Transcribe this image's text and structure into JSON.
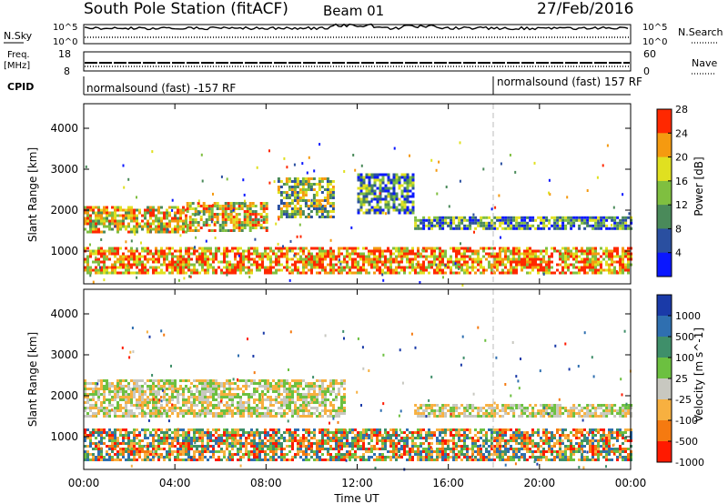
{
  "header": {
    "title": "South Pole Station (fitACF)",
    "beam": "Beam 01",
    "date": "27/Feb/2016"
  },
  "top_panels": {
    "nsky": {
      "label": "N.Sky",
      "ticks": [
        "10^5",
        "10^0"
      ]
    },
    "nsearch": {
      "label": "N.Search",
      "ticks": [
        "10^5",
        "10^0"
      ]
    },
    "freq": {
      "label_line1": "Freq.",
      "label_line2": "[MHz]",
      "ticks": [
        "18",
        "8"
      ]
    },
    "nave": {
      "label": "Nave",
      "ticks": [
        "60",
        "0"
      ]
    },
    "cpid": {
      "label": "CPID",
      "segments": [
        {
          "text": "normalsound (fast) -157 RF",
          "start": "00:00",
          "end": "18:00"
        },
        {
          "text": "normalsound (fast) 157 RF",
          "start": "18:00",
          "end": "24:00"
        }
      ]
    }
  },
  "chart_data": [
    {
      "type": "heatmap",
      "name": "power",
      "ylabel": "Slant Range [km]",
      "xlabel": "",
      "x_ticks": [
        "00:00",
        "04:00",
        "08:00",
        "12:00",
        "16:00",
        "20:00",
        "00:00"
      ],
      "y_ticks": [
        1000,
        2000,
        3000,
        4000
      ],
      "ylim": [
        200,
        4600
      ],
      "colorbar": {
        "label": "Power [dB]",
        "ticks": [
          "4",
          "8",
          "12",
          "16",
          "20",
          "24",
          "28"
        ],
        "colors": [
          "#0a17ff",
          "#2a4fa0",
          "#4a8a5a",
          "#7fbf40",
          "#e0e020",
          "#f59a10",
          "#ff2800"
        ]
      },
      "echo_bands": [
        {
          "t_start": 0.0,
          "t_end": 4.5,
          "r_low": 1450,
          "r_high": 2100,
          "level": 20
        },
        {
          "t_start": 4.5,
          "t_end": 8.0,
          "r_low": 1500,
          "r_high": 2200,
          "level": 18
        },
        {
          "t_start": 8.5,
          "t_end": 11.0,
          "r_low": 1800,
          "r_high": 2800,
          "level": 16
        },
        {
          "t_start": 12.0,
          "t_end": 14.5,
          "r_low": 1900,
          "r_high": 2900,
          "level": 10
        },
        {
          "t_start": 14.5,
          "t_end": 24.0,
          "r_low": 1550,
          "r_high": 1850,
          "level": 10
        },
        {
          "t_start": 0.0,
          "t_end": 24.0,
          "r_low": 450,
          "r_high": 1100,
          "level": 22
        }
      ]
    },
    {
      "type": "heatmap",
      "name": "velocity",
      "ylabel": "Slant Range [km]",
      "xlabel": "Time UT",
      "x_ticks": [
        "00:00",
        "04:00",
        "08:00",
        "12:00",
        "16:00",
        "20:00",
        "00:00"
      ],
      "y_ticks": [
        1000,
        2000,
        3000,
        4000
      ],
      "ylim": [
        200,
        4600
      ],
      "colorbar": {
        "label": "Velocity [m s^-1]",
        "ticks": [
          "1000",
          "500",
          "100",
          "25",
          "-25",
          "-100",
          "-500",
          "-1000"
        ],
        "colors": [
          "#1a3aa8",
          "#2f6fb0",
          "#3f8f6a",
          "#6cc040",
          "#c8c8c0",
          "#f7b040",
          "#f57a10",
          "#ff1a00"
        ]
      },
      "echo_bands": [
        {
          "t_start": 0.0,
          "t_end": 11.5,
          "r_low": 1500,
          "r_high": 2400,
          "level": 0
        },
        {
          "t_start": 14.5,
          "t_end": 24.0,
          "r_low": 1500,
          "r_high": 1800,
          "level": 0
        },
        {
          "t_start": 0.0,
          "t_end": 24.0,
          "r_low": 450,
          "r_high": 1200,
          "level": 150
        }
      ]
    }
  ]
}
